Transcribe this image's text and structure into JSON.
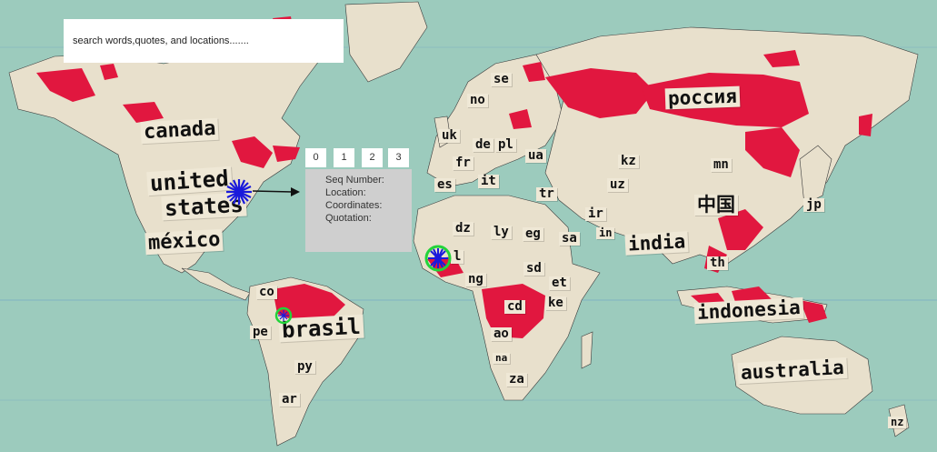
{
  "search": {
    "placeholder": "search words,quotes, and locations......."
  },
  "popup": {
    "tabs": [
      "0",
      "1",
      "2",
      "3"
    ],
    "fields": [
      "Seq Number:",
      "Location:",
      "Coordinates:",
      "Quotation:"
    ]
  },
  "countries": [
    "canada",
    "united",
    "states",
    "méxico",
    "co",
    "pe",
    "brasil",
    "py",
    "ar",
    "no",
    "se",
    "uk",
    "de",
    "pl",
    "fr",
    "ua",
    "es",
    "it",
    "tr",
    "dz",
    "ly",
    "eg",
    "l",
    "ng",
    "sd",
    "et",
    "cd",
    "ke",
    "ao",
    "na",
    "za",
    "sa",
    "ir",
    "kz",
    "uz",
    "mn",
    "россия",
    "中国",
    "in",
    "india",
    "th",
    "jp",
    "indonesia",
    "australia",
    "nz"
  ],
  "colors": {
    "ocean": "#9ccbbd",
    "land": "#e8e0cc",
    "highlight": "#e1173f",
    "marker_blue": "#1a1adb",
    "marker_green": "#22d33a"
  },
  "markers": [
    {
      "name": "united-states-marker",
      "type": "blue-star"
    },
    {
      "name": "west-africa-marker",
      "type": "blue-star-green-ring"
    },
    {
      "name": "brazil-marker",
      "type": "green-ring-small"
    }
  ]
}
